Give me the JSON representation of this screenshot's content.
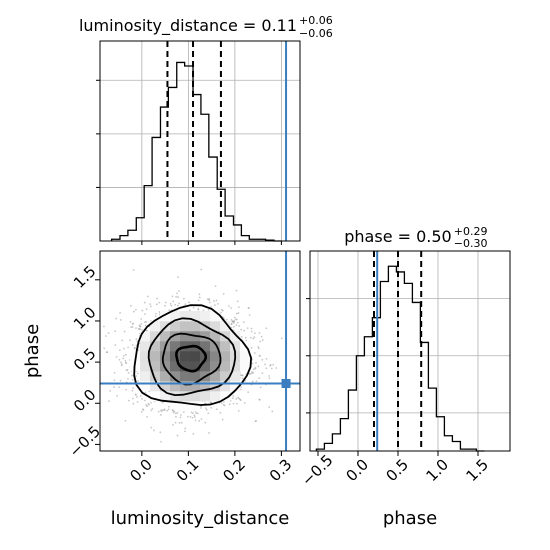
{
  "chart_data": {
    "type": "corner",
    "truth_color": "#3a7dc0",
    "truth": {
      "luminosity_distance": 0.31,
      "phase": 0.24
    },
    "panels": [
      {
        "id": "hist-luminosity_distance",
        "type": "histogram",
        "parameter": "luminosity_distance",
        "title": {
          "main": "luminosity_distance = 0.11",
          "upper": "+0.06",
          "lower": "−0.06"
        },
        "xlim": [
          -0.09,
          0.34
        ],
        "ylim": [
          0,
          1.0
        ],
        "quantiles": [
          0.055,
          0.11,
          0.17
        ],
        "bin_edges": [
          -0.065,
          -0.047,
          -0.03,
          -0.012,
          0.005,
          0.022,
          0.04,
          0.057,
          0.075,
          0.092,
          0.11,
          0.127,
          0.144,
          0.162,
          0.179,
          0.197,
          0.214,
          0.231,
          0.249,
          0.266,
          0.284,
          0.301
        ],
        "counts": [
          0.01,
          0.03,
          0.06,
          0.13,
          0.31,
          0.58,
          0.75,
          0.86,
          1.0,
          0.98,
          0.82,
          0.71,
          0.47,
          0.29,
          0.14,
          0.09,
          0.03,
          0.01,
          0.01,
          0.005,
          0.0
        ]
      },
      {
        "id": "hist-phase",
        "type": "histogram",
        "parameter": "phase",
        "title": {
          "main": "phase = 0.50",
          "upper": "+0.29",
          "lower": "−0.30"
        },
        "xlim": [
          -0.6,
          1.9
        ],
        "xticks": [
          -0.5,
          0.0,
          0.5,
          1.0,
          1.5
        ],
        "xticklabels": [
          "−0.5",
          "0.0",
          "0.5",
          "1.0",
          "1.5"
        ],
        "xlabel": "phase",
        "ylim": [
          0,
          1.0
        ],
        "quantiles": [
          0.2,
          0.5,
          0.79
        ],
        "bin_edges": [
          -0.52,
          -0.42,
          -0.32,
          -0.22,
          -0.12,
          -0.02,
          0.08,
          0.18,
          0.28,
          0.38,
          0.48,
          0.58,
          0.68,
          0.78,
          0.88,
          0.98,
          1.08,
          1.18,
          1.28,
          1.38,
          1.48,
          1.58
        ],
        "counts": [
          0.01,
          0.04,
          0.09,
          0.17,
          0.32,
          0.5,
          0.6,
          0.7,
          0.89,
          0.97,
          0.94,
          0.88,
          0.78,
          0.57,
          0.33,
          0.18,
          0.08,
          0.05,
          0.01,
          0.01,
          0.0
        ]
      },
      {
        "id": "joint-luminosity_distance-phase",
        "type": "2d-density",
        "x_parameter": "luminosity_distance",
        "y_parameter": "phase",
        "xlim": [
          -0.09,
          0.34
        ],
        "xticks": [
          0.0,
          0.1,
          0.2,
          0.3
        ],
        "xticklabels": [
          "0.0",
          "0.1",
          "0.2",
          "0.3"
        ],
        "xlabel": "luminosity_distance",
        "ylim": [
          -0.58,
          1.85
        ],
        "yticks": [
          -0.5,
          0.0,
          0.5,
          1.0,
          1.5
        ],
        "yticklabels": [
          "−0.5",
          "0.0",
          "0.5",
          "1.0",
          "1.5"
        ],
        "ylabel": "phase",
        "mean": [
          0.105,
          0.55
        ],
        "sigma": [
          0.062,
          0.3
        ],
        "contour_levels_sigma": [
          0.5,
          1.0,
          1.5,
          2.0
        ]
      }
    ]
  }
}
